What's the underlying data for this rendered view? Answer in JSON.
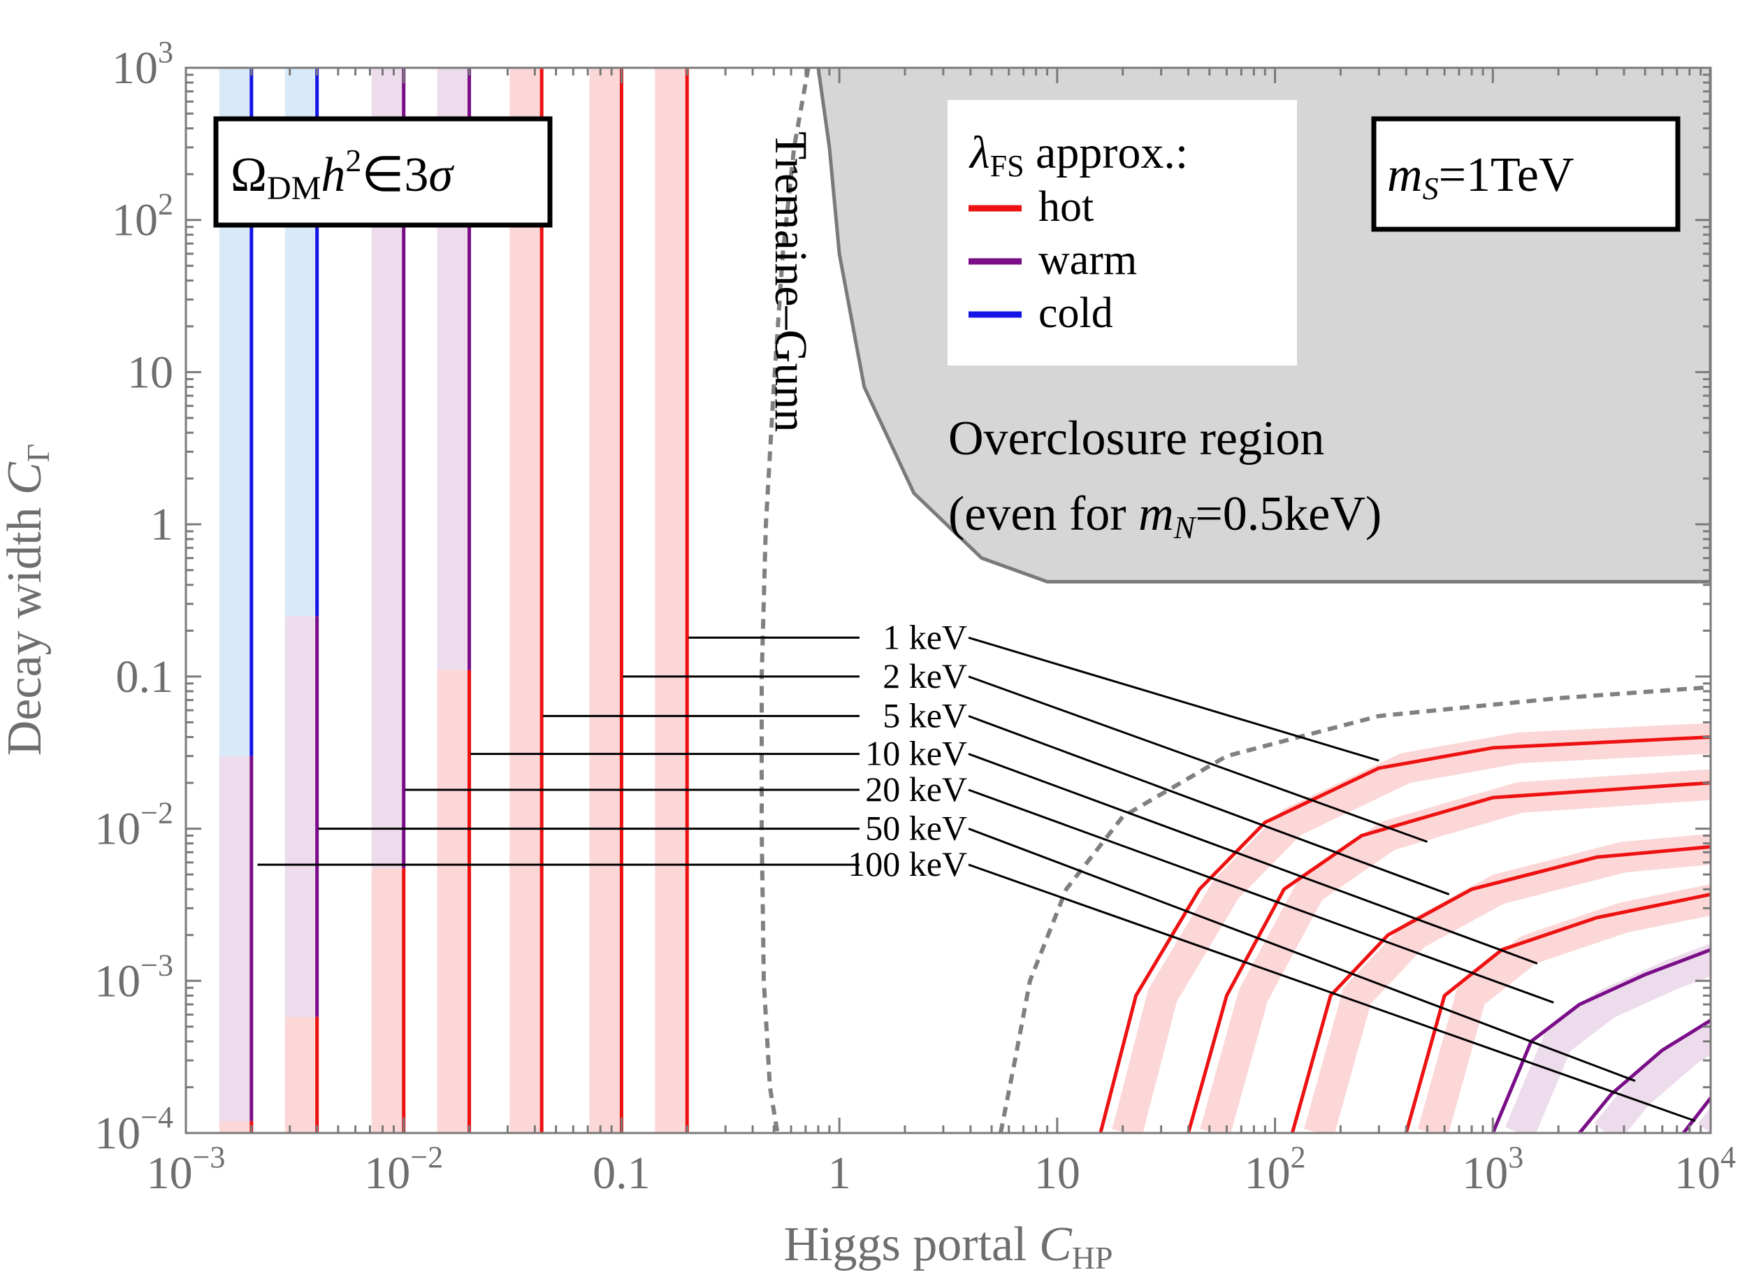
{
  "chart_data": {
    "type": "line",
    "xlabel": "Higgs portal C_HP",
    "ylabel": "Decay width C_Γ",
    "x_scale": "log",
    "y_scale": "log",
    "xlim": [
      0.001,
      10000
    ],
    "ylim": [
      0.0001,
      1000
    ],
    "grid": false,
    "x_ticks": [
      {
        "v": 0.001,
        "m": "10",
        "e": "−3"
      },
      {
        "v": 0.01,
        "m": "10",
        "e": "−2"
      },
      {
        "v": 0.1,
        "m": "0.1",
        "e": ""
      },
      {
        "v": 1,
        "m": "1",
        "e": ""
      },
      {
        "v": 10,
        "m": "10",
        "e": ""
      },
      {
        "v": 100,
        "m": "10",
        "e": "2"
      },
      {
        "v": 1000,
        "m": "10",
        "e": "3"
      },
      {
        "v": 10000,
        "m": "10",
        "e": "4"
      }
    ],
    "y_ticks": [
      {
        "v": 0.0001,
        "m": "10",
        "e": "−4"
      },
      {
        "v": 0.001,
        "m": "10",
        "e": "−3"
      },
      {
        "v": 0.01,
        "m": "10",
        "e": "−2"
      },
      {
        "v": 0.1,
        "m": "0.1",
        "e": ""
      },
      {
        "v": 1,
        "m": "1",
        "e": ""
      },
      {
        "v": 10,
        "m": "10",
        "e": ""
      },
      {
        "v": 100,
        "m": "10",
        "e": "2"
      },
      {
        "v": 1000,
        "m": "10",
        "e": "3"
      }
    ],
    "legend": {
      "title": "λ_FS approx.:",
      "placement": "top",
      "entries": [
        {
          "label": "hot",
          "color": "#ee1111"
        },
        {
          "label": "warm",
          "color": "#7a0e88"
        },
        {
          "label": "cold",
          "color": "#1414e6"
        }
      ]
    },
    "annotations": {
      "omega_box": "Ω_DM h² ∈ 3σ",
      "mass_box": "m_S = 1TeV",
      "tremaine_gunn": "Tremaine–Gunn",
      "overclosure_line1": "Overclosure region",
      "overclosure_line2": "(even for m_N = 0.5keV)"
    },
    "colors": {
      "hot": "#ee1111",
      "warm": "#7a0e88",
      "cold": "#1414e6",
      "hot_band": "#fcd7d7",
      "warm_band": "#eddcec",
      "cold_band": "#d8e9f9",
      "overclosure": "#d6d6d6",
      "boundary": "#7a7a7a"
    },
    "series": [
      {
        "name": "1 keV",
        "left_x": 0.2,
        "right_curve": [
          [
            15.8,
            0.0001
          ],
          [
            23,
            0.0008
          ],
          [
            45,
            0.004
          ],
          [
            90,
            0.011
          ],
          [
            300,
            0.025
          ],
          [
            1000,
            0.034
          ],
          [
            10000,
            0.04
          ]
        ]
      },
      {
        "name": "2 keV",
        "left_x": 0.1,
        "right_curve": [
          [
            40,
            0.0001
          ],
          [
            60,
            0.0008
          ],
          [
            110,
            0.004
          ],
          [
            250,
            0.009
          ],
          [
            1000,
            0.016
          ],
          [
            10000,
            0.02
          ]
        ]
      },
      {
        "name": "5 keV",
        "left_x": 0.043,
        "right_curve": [
          [
            120,
            0.0001
          ],
          [
            180,
            0.0008
          ],
          [
            330,
            0.002
          ],
          [
            800,
            0.004
          ],
          [
            3000,
            0.0065
          ],
          [
            10000,
            0.0076
          ]
        ]
      },
      {
        "name": "10 keV",
        "left_x": 0.02,
        "right_curve": [
          [
            400,
            0.0001
          ],
          [
            600,
            0.0008
          ],
          [
            1100,
            0.0016
          ],
          [
            3000,
            0.0026
          ],
          [
            10000,
            0.0037
          ]
        ]
      },
      {
        "name": "20 keV",
        "left_x": 0.01,
        "right_curve": [
          [
            1000,
            0.0001
          ],
          [
            1500,
            0.0004
          ],
          [
            2500,
            0.0007
          ],
          [
            5000,
            0.0011
          ],
          [
            10000,
            0.0016
          ]
        ]
      },
      {
        "name": "50 keV",
        "left_x": 0.004,
        "right_curve": [
          [
            2500,
            0.0001
          ],
          [
            3500,
            0.00018
          ],
          [
            6000,
            0.00035
          ],
          [
            10000,
            0.00055
          ]
        ]
      },
      {
        "name": "100 keV",
        "left_x": 0.002,
        "right_curve": [
          [
            7500,
            0.0001
          ],
          [
            10000,
            0.00017
          ]
        ]
      }
    ],
    "label_anchors": [
      {
        "label": "1 keV",
        "y": 0.18,
        "left_x": 0.2,
        "right_end": [
          300,
          0.028
        ]
      },
      {
        "label": "2 keV",
        "y": 0.1,
        "left_x": 0.1,
        "right_end": [
          500,
          0.0082
        ]
      },
      {
        "label": "5 keV",
        "y": 0.055,
        "left_x": 0.043,
        "right_end": [
          630,
          0.0037
        ]
      },
      {
        "label": "10 keV",
        "y": 0.031,
        "left_x": 0.02,
        "right_end": [
          1600,
          0.0013
        ]
      },
      {
        "label": "20 keV",
        "y": 0.018,
        "left_x": 0.01,
        "right_end": [
          1900,
          0.00072
        ]
      },
      {
        "label": "50 keV",
        "y": 0.01,
        "left_x": 0.004,
        "right_end": [
          4500,
          0.00022
        ]
      },
      {
        "label": "100 keV",
        "y": 0.0058,
        "left_x": 0.0021,
        "right_end": [
          8500,
          0.00012
        ]
      }
    ]
  }
}
